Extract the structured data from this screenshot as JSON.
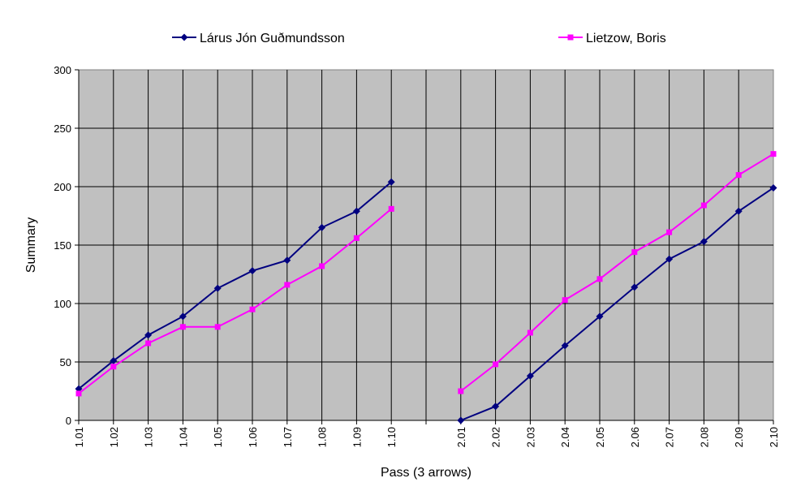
{
  "chart_data": {
    "type": "line",
    "title": "",
    "xlabel": "Pass (3 arrows)",
    "ylabel": "Summary",
    "ylim": [
      0,
      300
    ],
    "yticks": [
      0,
      50,
      100,
      150,
      200,
      250,
      300
    ],
    "grid": true,
    "legend_position": "top",
    "plot_background": "#c0c0c0",
    "categories": [
      "1.01",
      "1.02",
      "1.03",
      "1.04",
      "1.05",
      "1.06",
      "1.07",
      "1.08",
      "1.09",
      "1.10",
      "",
      "2.01",
      "2.02",
      "2.03",
      "2.04",
      "2.05",
      "2.06",
      "2.07",
      "2.08",
      "2.09",
      "2.10"
    ],
    "series": [
      {
        "name": "Lárus Jón Guðmundsson",
        "color": "#000080",
        "marker": "diamond",
        "values": [
          27,
          51,
          73,
          89,
          113,
          128,
          137,
          165,
          179,
          204,
          null,
          0,
          12,
          38,
          64,
          89,
          114,
          138,
          153,
          179,
          199
        ]
      },
      {
        "name": "Lietzow, Boris",
        "color": "#ff00ff",
        "marker": "square",
        "values": [
          23,
          46,
          66,
          80,
          80,
          95,
          116,
          132,
          156,
          181,
          null,
          25,
          48,
          75,
          103,
          121,
          144,
          161,
          184,
          210,
          228
        ]
      }
    ]
  }
}
